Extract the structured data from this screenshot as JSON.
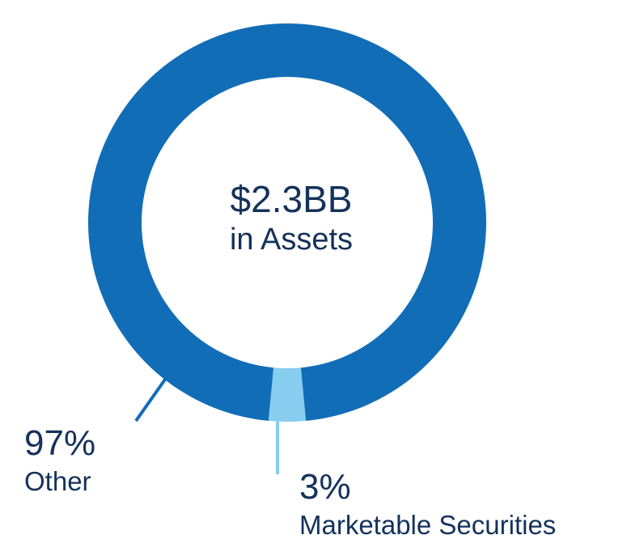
{
  "chart_data": {
    "type": "pie",
    "variant": "donut",
    "center_text": {
      "amount": "$2.3BB",
      "subtitle": "in Assets"
    },
    "slices": [
      {
        "percent_label": "97%",
        "label": "Other",
        "value": 97,
        "color": "#126db7"
      },
      {
        "percent_label": "3%",
        "label": "Marketable Securities",
        "value": 3,
        "color": "#86cdef"
      }
    ],
    "text_color": "#14325a"
  }
}
